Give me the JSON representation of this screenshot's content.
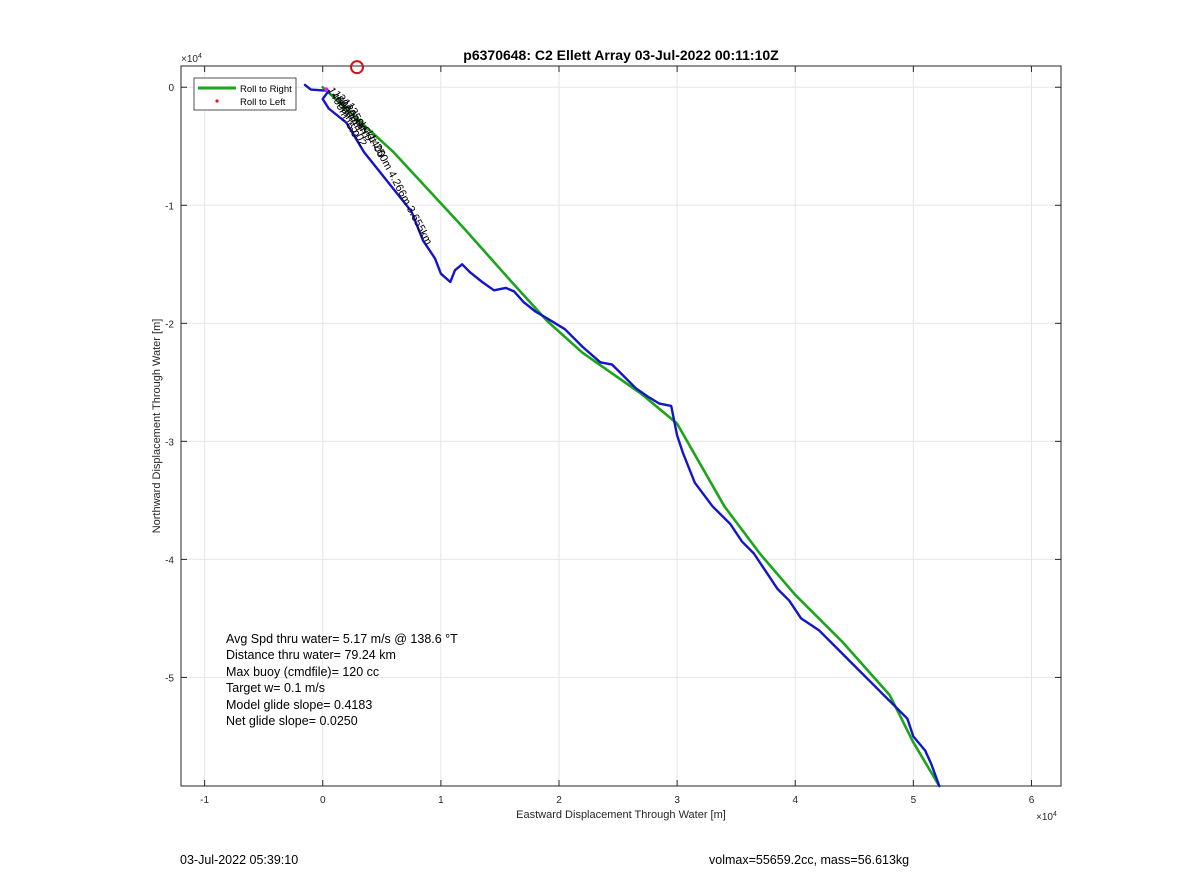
{
  "chart_data": {
    "type": "line",
    "title": "p6370648: C2 Ellett Array 03-Jul-2022 00:11:10Z",
    "xlabel": "Eastward Displacement Through Water [m]",
    "ylabel": "Northward Displacement Through Water [m]",
    "x_multiplier": "×10^4",
    "y_multiplier": "×10^4",
    "x_multiplier_label": "×10",
    "y_multiplier_label": "×10",
    "multiplier_exponent": "4",
    "xlim": [
      -1.2,
      6.25
    ],
    "ylim": [
      -5.92,
      0.18
    ],
    "xticks": [
      -1,
      0,
      1,
      2,
      3,
      4,
      5,
      6
    ],
    "yticks": [
      0,
      -1,
      -2,
      -3,
      -4,
      -5
    ],
    "xtick_labels": [
      "-1",
      "0",
      "1",
      "2",
      "3",
      "4",
      "5",
      "6"
    ],
    "ytick_labels": [
      "0",
      "-1",
      "-2",
      "-3",
      "-4",
      "-5"
    ],
    "grid": true,
    "legend_position": "top-left",
    "legend": [
      {
        "label": "Roll to Right",
        "color": "#1aa51a",
        "style": "line"
      },
      {
        "label": "Roll to Left",
        "color": "#e8191a",
        "style": "dot"
      }
    ],
    "series": [
      {
        "color": "#1aa51a",
        "x": [
          0,
          0.6,
          1.2,
          1.6,
          1.9,
          2.2,
          2.7,
          3.0,
          3.4,
          3.7,
          4.0,
          4.4,
          4.8,
          5.0,
          5.22
        ],
        "y": [
          0,
          -0.55,
          -1.2,
          -1.65,
          -1.98,
          -2.25,
          -2.6,
          -2.85,
          -3.55,
          -3.95,
          -4.3,
          -4.7,
          -5.15,
          -5.55,
          -5.92
        ]
      },
      {
        "color": "#1414c8",
        "x": [
          -0.15,
          -0.1,
          0.05,
          0.0,
          0.05,
          0.2,
          0.35,
          0.55,
          0.75,
          0.85,
          0.95,
          1.0,
          1.08,
          1.12,
          1.18,
          1.2,
          1.25,
          1.35,
          1.45,
          1.55,
          1.62,
          1.7,
          1.8,
          1.92,
          2.05,
          2.2,
          2.35,
          2.45,
          2.55,
          2.65,
          2.75,
          2.85,
          2.95,
          3.0,
          3.05,
          3.15,
          3.3,
          3.45,
          3.55,
          3.65,
          3.75,
          3.85,
          3.95,
          4.05,
          4.2,
          4.35,
          4.5,
          4.65,
          4.8,
          4.95,
          5.0,
          5.1,
          5.15,
          5.22
        ],
        "y": [
          0.02,
          -0.02,
          -0.03,
          -0.1,
          -0.18,
          -0.3,
          -0.55,
          -0.8,
          -1.05,
          -1.3,
          -1.45,
          -1.58,
          -1.65,
          -1.55,
          -1.5,
          -1.52,
          -1.57,
          -1.65,
          -1.72,
          -1.7,
          -1.73,
          -1.82,
          -1.9,
          -1.97,
          -2.05,
          -2.2,
          -2.33,
          -2.35,
          -2.45,
          -2.55,
          -2.62,
          -2.68,
          -2.7,
          -2.95,
          -3.1,
          -3.35,
          -3.55,
          -3.7,
          -3.85,
          -3.95,
          -4.1,
          -4.25,
          -4.35,
          -4.5,
          -4.6,
          -4.75,
          -4.9,
          -5.05,
          -5.2,
          -5.35,
          -5.5,
          -5.62,
          -5.73,
          -5.92
        ]
      }
    ],
    "markers": [
      {
        "x": 0.29,
        "y": 0.17,
        "color": "#c8141a",
        "shape": "circle"
      }
    ],
    "inline_labels": [
      {
        "text": "1400m, 5.0",
        "x": 0.04,
        "y": -0.02
      },
      {
        "text": "1800m, 5.02",
        "x": 0.08,
        "y": -0.05
      },
      {
        "text": "2000m",
        "x": 0.12,
        "y": -0.08
      },
      {
        "text": "1300m",
        "x": 0.16,
        "y": -0.12
      },
      {
        "text": "1350m",
        "x": 0.2,
        "y": -0.15
      },
      {
        "text": "slerp",
        "x": 0.28,
        "y": -0.28
      },
      {
        "text": "cktt",
        "x": 0.34,
        "y": -0.35
      },
      {
        "text": "1400",
        "x": 0.38,
        "y": -0.42
      },
      {
        "text": "250m 4.266m 3.655km",
        "x": 0.43,
        "y": -0.5
      }
    ],
    "annotations": [
      "Avg Spd thru water=  5.17 m/s @ 138.6 °T",
      "Distance thru water= 79.24 km",
      "Max buoy (cmdfile)= 120 cc",
      "Target w= 0.1 m/s",
      "Model glide slope= 0.4183",
      "Net glide slope= 0.0250"
    ]
  },
  "footer": {
    "left": "03-Jul-2022 05:39:10",
    "right": "volmax=55659.2cc, mass=56.613kg"
  }
}
